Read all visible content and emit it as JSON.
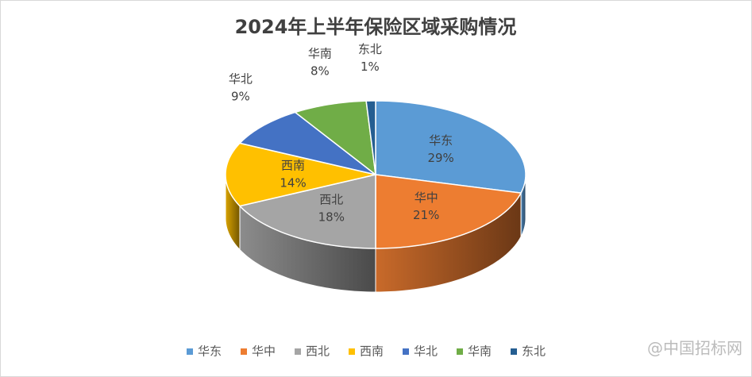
{
  "chart_data": {
    "type": "pie",
    "title": "2024年上半年保险区域采购情况",
    "categories": [
      "华东",
      "华中",
      "西北",
      "西南",
      "华北",
      "华南",
      "东北"
    ],
    "values": [
      29,
      21,
      18,
      14,
      9,
      8,
      1
    ],
    "value_labels": [
      "29%",
      "21%",
      "18%",
      "14%",
      "9%",
      "8%",
      "1%"
    ],
    "colors": [
      "#5b9bd5",
      "#ed7d31",
      "#a5a5a5",
      "#ffc000",
      "#4472c4",
      "#70ad47",
      "#255e91"
    ],
    "legend": "bottom",
    "watermark": "@中国招标网"
  }
}
